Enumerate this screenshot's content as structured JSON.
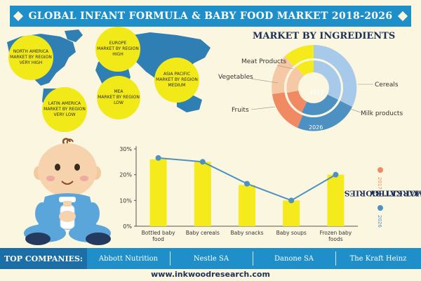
{
  "header": {
    "title": "GLOBAL INFANT FORMULA & BABY FOOD MARKET 2018-2026"
  },
  "regions": [
    {
      "name": "NORTH AMERICA",
      "text": "MARKET BY REGION",
      "level": "VERY HIGH"
    },
    {
      "name": "EUROPE",
      "text": "MARKET BY REGION",
      "level": "HIGH"
    },
    {
      "name": "ASIA PACIFIC",
      "text": "MARKET BY REGION",
      "level": "MEDIUM"
    },
    {
      "name": "MEA",
      "text": "MARKET BY REGION",
      "level": "LOW"
    },
    {
      "name": "LATIN AMERICA",
      "text": "MARKET BY REGION",
      "level": "VERY LOW"
    }
  ],
  "ingredients": {
    "title": "MARKET BY INGREDIENTS",
    "labels": [
      "Meat Products",
      "Vegetables",
      "Cereals",
      "Fruits",
      "Milk products"
    ],
    "inner_year": "2017",
    "outer_year": "2026"
  },
  "product_section": {
    "title_line1": "MARKET BY",
    "title_line2": "PRODUCT CATEGORIES",
    "legend": [
      {
        "year": "2017",
        "color": "#ef8a62"
      },
      {
        "year": "2026",
        "color": "#4d90c2"
      }
    ]
  },
  "chart_data": {
    "type": "bar",
    "categories": [
      "Bottled baby food",
      "Baby cereals",
      "Baby snacks",
      "Baby soups",
      "Frozen baby foods"
    ],
    "series": [
      {
        "name": "2017",
        "type": "bar",
        "values": [
          26,
          25,
          16,
          10,
          20
        ]
      },
      {
        "name": "2026",
        "type": "line",
        "values": [
          26.5,
          25,
          16.5,
          10,
          20
        ]
      }
    ],
    "yticks": [
      "0%",
      "10%",
      "20%",
      "30%"
    ],
    "ylim": [
      0,
      30
    ],
    "grid": false,
    "colors": {
      "bar": "#f5ea1c",
      "line": "#4d90c2"
    }
  },
  "companies": {
    "label": "TOP COMPANIES:",
    "items": [
      "Abbott Nutrition",
      "Nestle SA",
      "Danone SA",
      "The Kraft Heinz"
    ]
  },
  "footer": {
    "website": "www.inkwoodresearch.com"
  },
  "colors": {
    "background": "#fbf6e0",
    "primary_blue": "#1f8fc9",
    "dark_blue": "#1b6fa6",
    "bubble_yellow": "#f2ea18",
    "title_navy": "#1b2f57"
  },
  "illustrations": {
    "map": "world-map",
    "mascot": "baby-with-bottle"
  }
}
